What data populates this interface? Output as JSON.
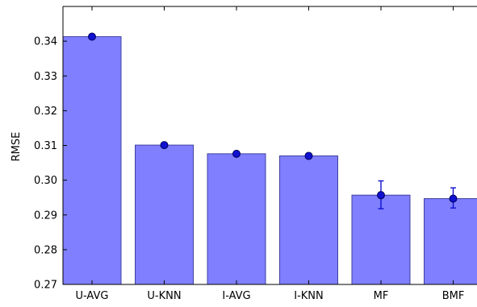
{
  "chart_data": {
    "type": "bar",
    "ylabel": "RMSE",
    "xlabel": "",
    "ylim": [
      0.27,
      0.35
    ],
    "yticks": [
      0.27,
      0.28,
      0.29,
      0.3,
      0.31,
      0.32,
      0.33,
      0.34
    ],
    "ytick_labels": [
      "0.27",
      "0.28",
      "0.29",
      "0.30",
      "0.31",
      "0.32",
      "0.33",
      "0.34"
    ],
    "categories": [
      "U-AVG",
      "U-KNN",
      "I-AVG",
      "I-KNN",
      "MF",
      "BMF"
    ],
    "values": [
      0.3413,
      0.3101,
      0.3076,
      0.307,
      0.2957,
      0.2947
    ],
    "points": [
      0.3413,
      0.3101,
      0.3076,
      0.307,
      0.2957,
      0.2947
    ],
    "error_low": [
      null,
      null,
      null,
      null,
      0.2918,
      0.292
    ],
    "error_high": [
      null,
      null,
      null,
      null,
      0.2998,
      0.2978
    ],
    "grid": false,
    "colors": {
      "bar_fill": "#7f7fff",
      "bar_edge": "#4040a0",
      "point": "#1010d0",
      "point_edge": "#000060",
      "errorbar": "#1010d0"
    }
  }
}
